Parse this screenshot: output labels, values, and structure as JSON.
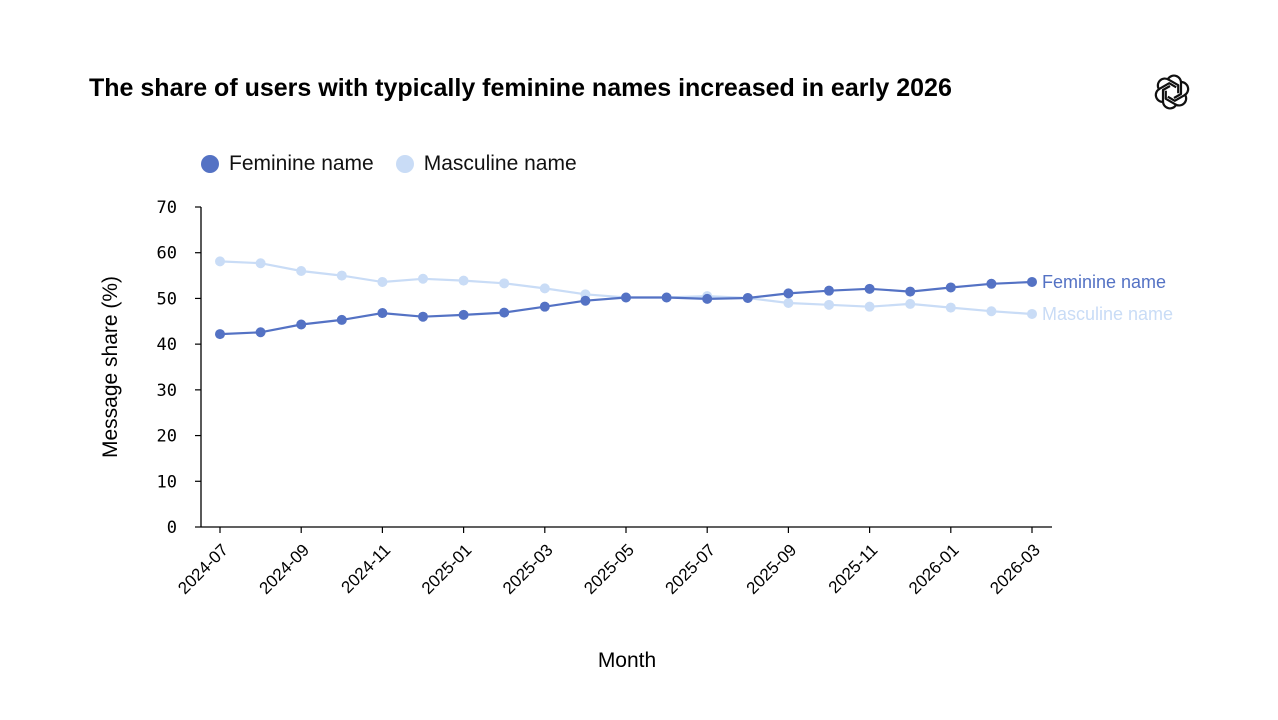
{
  "chart_data": {
    "type": "line",
    "title": "The share of users with typically feminine names increased in early 2026",
    "xlabel": "Month",
    "ylabel": "Message share (%)",
    "ylim": [
      0,
      70
    ],
    "yticks": [
      "0",
      "10",
      "20",
      "30",
      "40",
      "50",
      "60",
      "70"
    ],
    "x": [
      "2024-07",
      "2024-08",
      "2024-09",
      "2024-10",
      "2024-11",
      "2024-12",
      "2025-01",
      "2025-02",
      "2025-03",
      "2025-04",
      "2025-05",
      "2025-06",
      "2025-07",
      "2025-08",
      "2025-09",
      "2025-10",
      "2025-11",
      "2025-12",
      "2026-01",
      "2026-02",
      "2026-03"
    ],
    "xticks": [
      "2024-07",
      "2024-09",
      "2024-11",
      "2025-01",
      "2025-03",
      "2025-05",
      "2025-07",
      "2025-09",
      "2025-11",
      "2026-01",
      "2026-03"
    ],
    "legend_position": "top-left",
    "grid": false,
    "series": [
      {
        "name": "Feminine name",
        "color": "#5472c4",
        "values": [
          42.2,
          42.6,
          44.3,
          45.3,
          46.8,
          46.0,
          46.4,
          46.9,
          48.2,
          49.5,
          50.2,
          50.2,
          49.9,
          50.1,
          51.1,
          51.7,
          52.1,
          51.5,
          52.4,
          53.2,
          53.6
        ]
      },
      {
        "name": "Masculine name",
        "color": "#c9dcf6",
        "values": [
          58.1,
          57.7,
          56.0,
          55.0,
          53.6,
          54.3,
          53.9,
          53.3,
          52.2,
          50.9,
          50.2,
          50.2,
          50.5,
          50.1,
          49.0,
          48.6,
          48.2,
          48.8,
          48.0,
          47.2,
          46.6
        ]
      }
    ]
  },
  "logo": {
    "icon": "openai-logo-icon"
  }
}
